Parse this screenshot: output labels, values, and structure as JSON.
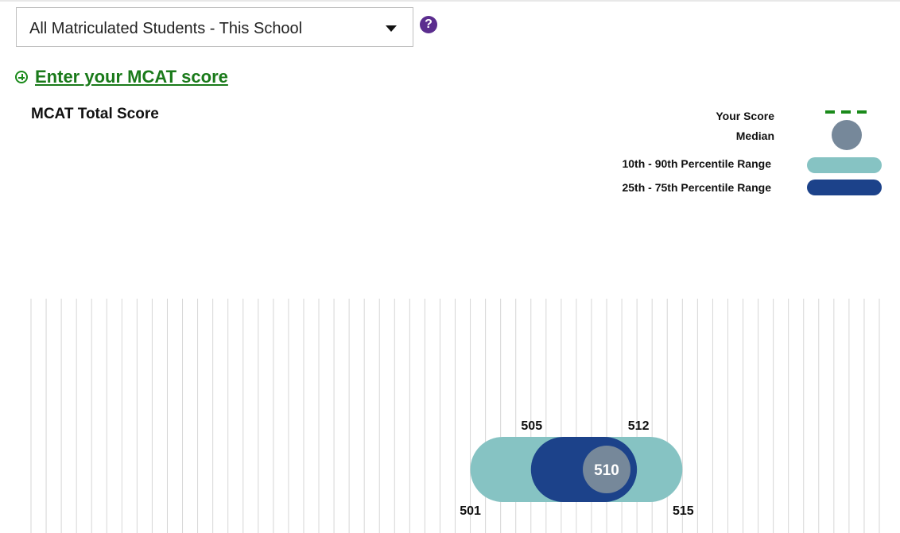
{
  "selector": {
    "value": "All Matriculated Students - This School"
  },
  "help": {
    "glyph": "?"
  },
  "enter_score": {
    "label": "Enter your MCAT score"
  },
  "chart_data": {
    "type": "range",
    "title": "MCAT Total Score",
    "legend": {
      "your_score": "Your Score",
      "median": "Median",
      "p10_90": "10th - 90th Percentile Range",
      "p25_75": "25th - 75th Percentile Range",
      "placement": "top-right"
    },
    "xlim": [
      472,
      528
    ],
    "grid": true,
    "values": {
      "p10": 501,
      "p25": 505,
      "median": 510,
      "p75": 512,
      "p90": 515
    },
    "labels": {
      "p10": "501",
      "p25": "505",
      "median": "510",
      "p75": "512",
      "p90": "515"
    },
    "colors": {
      "p10_90": "#86c3c3",
      "p25_75": "#1c428a",
      "median": "#76889a",
      "your_score": "#1a8a1a",
      "grid": "#d6d6d6"
    }
  }
}
